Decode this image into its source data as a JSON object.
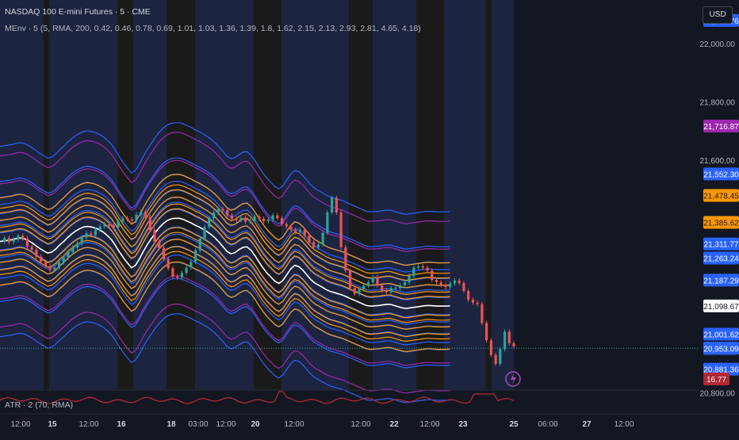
{
  "header": {
    "symbol_title": "NASDAQ 100 E-mini Futures · 5 · CME",
    "indicator_label": "MEnv · 5 (5, RMA, 200, 0.42, 0.46, 0.78, 0.69, 1.01, 1.03, 1.36, 1.39, 1.8, 1.62, 2.15, 2.13, 2.93, 2.81, 4.65, 4.18)"
  },
  "currency_button": "USD",
  "atr_pane": {
    "label": "ATR · 2 (70, RMA)",
    "value_label": "16.77",
    "color": "#b22833"
  },
  "chart_data": {
    "type": "line",
    "title": "NASDAQ 100 E-mini Futures · 5 · CME",
    "x_ticks": [
      "12:00",
      "15",
      "12:00",
      "16",
      "18",
      "03:00",
      "12:00",
      "20",
      "12:00",
      "12:00",
      "22",
      "12:00",
      "23",
      "25",
      "06:00",
      "27",
      "12:00"
    ],
    "y_ticks": [
      "22,000.00",
      "21,800.00",
      "21,600.00",
      "20,800.00"
    ],
    "ylim": [
      20815,
      22150
    ],
    "x_count": 130,
    "series": [
      {
        "role": "price",
        "color": "#d1d4dc",
        "values": [
          21320,
          21332,
          21318,
          21326,
          21340,
          21330,
          21302,
          21292,
          21268,
          21250,
          21236,
          21222,
          21230,
          21248,
          21265,
          21284,
          21300,
          21314,
          21334,
          21348,
          21342,
          21360,
          21372,
          21380,
          21375,
          21368,
          21390,
          21400,
          21396,
          21392,
          21412,
          21422,
          21405,
          21360,
          21320,
          21298,
          21260,
          21228,
          21200,
          21196,
          21212,
          21230,
          21250,
          21290,
          21330,
          21370,
          21400,
          21420,
          21432,
          21428,
          21410,
          21398,
          21394,
          21402,
          21388,
          21392,
          21406,
          21398,
          21390,
          21396,
          21410,
          21400,
          21380,
          21372,
          21360,
          21352,
          21360,
          21340,
          21318,
          21300,
          21310,
          21350,
          21420,
          21470,
          21420,
          21300,
          21220,
          21160,
          21140,
          21156,
          21168,
          21180,
          21198,
          21170,
          21152,
          21146,
          21160,
          21160,
          21170,
          21180,
          21202,
          21230,
          21235,
          21230,
          21220,
          21188,
          21180,
          21170,
          21164,
          21176,
          21186,
          21177,
          21150,
          21120,
          21110,
          21105,
          21040,
          20980,
          20930,
          20900,
          20950,
          21010,
          20970,
          20960
        ]
      },
      {
        "role": "basis",
        "color": "#ffffff",
        "values": [
          21320,
          21322,
          21324,
          21326,
          21330,
          21332,
          21330,
          21324,
          21316,
          21306,
          21296,
          21288,
          21280,
          21284,
          21294,
          21308,
          21320,
          21334,
          21346,
          21356,
          21364,
          21370,
          21372,
          21370,
          21366,
          21360,
          21352,
          21340,
          21326,
          21306,
          21284,
          21264,
          21246,
          21230,
          21238,
          21260,
          21286,
          21310,
          21330,
          21350,
          21368,
          21382,
          21392,
          21398,
          21400,
          21400,
          21396,
          21390,
          21384,
          21376,
          21370,
          21362,
          21354,
          21344,
          21332,
          21318,
          21302,
          21286,
          21278,
          21282,
          21292,
          21300,
          21302,
          21290,
          21272,
          21250,
          21230,
          21212,
          21198,
          21184,
          21176,
          21186,
          21206,
          21226,
          21238,
          21234,
          21222,
          21206,
          21190,
          21178,
          21170,
          21162,
          21154,
          21148,
          21144,
          21140,
          21136,
          21130,
          21124,
          21118,
          21112,
          21106,
          21100,
          21098,
          21099,
          21100,
          21102,
          21104,
          21104,
          21100,
          21096,
          21092,
          21090,
          21092,
          21094,
          21096,
          21098,
          21100,
          21100,
          21099,
          21098,
          21098,
          21098,
          21099
        ]
      }
    ],
    "band_multipliers_pct": [
      0.42,
      0.46,
      0.78,
      0.69,
      1.01,
      1.03,
      1.36,
      1.39,
      1.8,
      1.62,
      2.15,
      2.13,
      2.93,
      2.81,
      4.65,
      4.18
    ],
    "band_colors": [
      "#2962ff",
      "#ff9800",
      "#2962ff",
      "#ff9800",
      "#2962ff",
      "#ff9800",
      "#2962ff",
      "#ff9800",
      "#2962ff",
      "#ff9800",
      "#2962ff",
      "#ff9800",
      "#2962ff",
      "#9c27b0",
      "#2962ff",
      "#9c27b0"
    ],
    "price_labels": [
      {
        "text": "22,079.76",
        "value": 22079.76,
        "bg": "#2962ff",
        "fg": "#ffffff"
      },
      {
        "text": "21,716.87",
        "value": 21716.87,
        "bg": "#9c27b0",
        "fg": "#ffffff"
      },
      {
        "text": "21,552.30",
        "value": 21552.3,
        "bg": "#2962ff",
        "fg": "#ffffff"
      },
      {
        "text": "21,478.45",
        "value": 21478.45,
        "bg": "#ff9800",
        "fg": "#131722"
      },
      {
        "text": "21,385.62",
        "value": 21385.62,
        "bg": "#ff9800",
        "fg": "#131722"
      },
      {
        "text": "21,311.77",
        "value": 21311.77,
        "bg": "#2962ff",
        "fg": "#ffffff"
      },
      {
        "text": "21,263.24",
        "value": 21263.24,
        "bg": "#2962ff",
        "fg": "#ffffff"
      },
      {
        "text": "21,187.29",
        "value": 21187.29,
        "bg": "#2962ff",
        "fg": "#ffffff"
      },
      {
        "text": "21,098.67",
        "value": 21098.67,
        "bg": "#ffffff",
        "fg": "#131722"
      },
      {
        "text": "21,001.62",
        "value": 21001.62,
        "bg": "#2962ff",
        "fg": "#ffffff"
      },
      {
        "text": "20,953.25",
        "value": 20953.25,
        "bg": "#26a69a",
        "fg": "#ffffff"
      },
      {
        "text": "20,953.09",
        "value": 20953.09,
        "bg": "#2962ff",
        "fg": "#ffffff"
      },
      {
        "text": "20,881.36",
        "value": 20881.36,
        "bg": "#2962ff",
        "fg": "#ffffff"
      }
    ],
    "last_price": 20953.25,
    "grid": false,
    "legend": "none",
    "colors": {
      "background": "#131722",
      "session_shade": "#1c2440",
      "weekend_shade": "#1a1a1a",
      "last_price_line": "#26a69a"
    }
  }
}
